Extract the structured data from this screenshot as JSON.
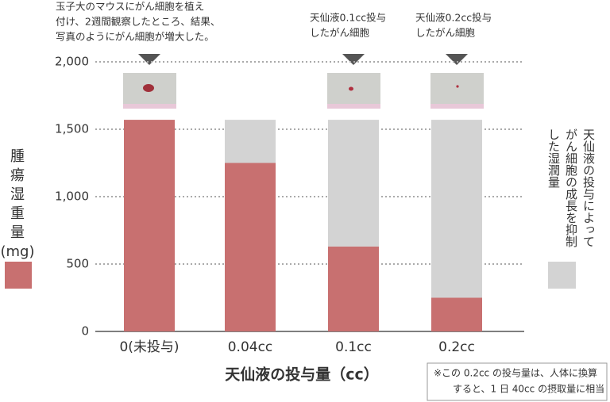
{
  "chart_data": {
    "type": "stacked_bar",
    "categories": [
      "0(未投与)",
      "0.04cc",
      "0.1cc",
      "0.2cc"
    ],
    "series": [
      {
        "name": "腫瘍湿重量(mg)",
        "color": "#c87070",
        "values": [
          1570,
          1250,
          630,
          250
        ]
      },
      {
        "name": "天仙液の投与によってがん細胞の成長を抑制した湿潤量",
        "color": "#d3d3d3",
        "values": [
          0,
          320,
          940,
          1320
        ]
      }
    ],
    "ylim": [
      0,
      2000
    ],
    "yticks": [
      0,
      {
        "value": 500,
        "label": "500"
      },
      {
        "value": 1000,
        "label": "1,000"
      },
      {
        "value": 1500,
        "label": "1,500"
      },
      {
        "value": 2000,
        "label": "2,000"
      }
    ],
    "grid": true,
    "xlabel": "天仙液の投与量（cc）",
    "annotations": [
      {
        "lines": [
          "玉子大のマウスにがん細胞を植え",
          "付け、2週間観察したところ、結果、",
          "写真のようにがん細胞が増大した。"
        ]
      },
      {
        "lines": [
          "天仙液0.1cc投与",
          "したがん細胞"
        ]
      },
      {
        "lines": [
          "天仙液0.2cc投与",
          "したがん細胞"
        ]
      }
    ],
    "note": [
      "※この 0.2cc の投与量は、人体に換算",
      "すると、1 日 40cc の摂取量に相当"
    ]
  }
}
